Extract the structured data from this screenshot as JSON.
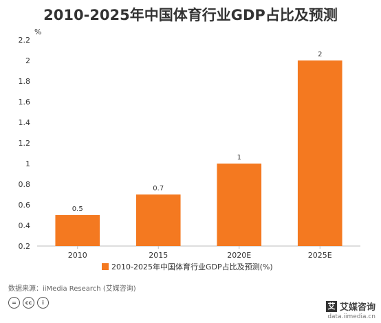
{
  "chart_data": {
    "type": "bar",
    "title": "2010-2025年中国体育行业GDP占比及预测",
    "ylabel": "%",
    "xlabel": "",
    "categories": [
      "2010",
      "2015",
      "2020E",
      "2025E"
    ],
    "series": [
      {
        "name": "2010-2025年中国体育行业GDP占比及预测(%)",
        "values": [
          0.5,
          0.7,
          1,
          2
        ]
      }
    ],
    "data_labels": [
      "0.5",
      "0.7",
      "1",
      "2"
    ],
    "ylim": [
      0.2,
      2.2
    ],
    "yticks": [
      "0.2",
      "0.4",
      "0.6",
      "0.8",
      "1",
      "1.2",
      "1.4",
      "1.6",
      "1.8",
      "2",
      "2.2"
    ],
    "grid": false,
    "legend_position": "bottom",
    "bar_color": "#F47920"
  },
  "footer": {
    "source": "数据来源：iiMedia Research (艾媒咨询)",
    "brand_logo_char": "艾",
    "brand_name": "艾媒咨询",
    "brand_url": "data.iimedia.cn"
  }
}
